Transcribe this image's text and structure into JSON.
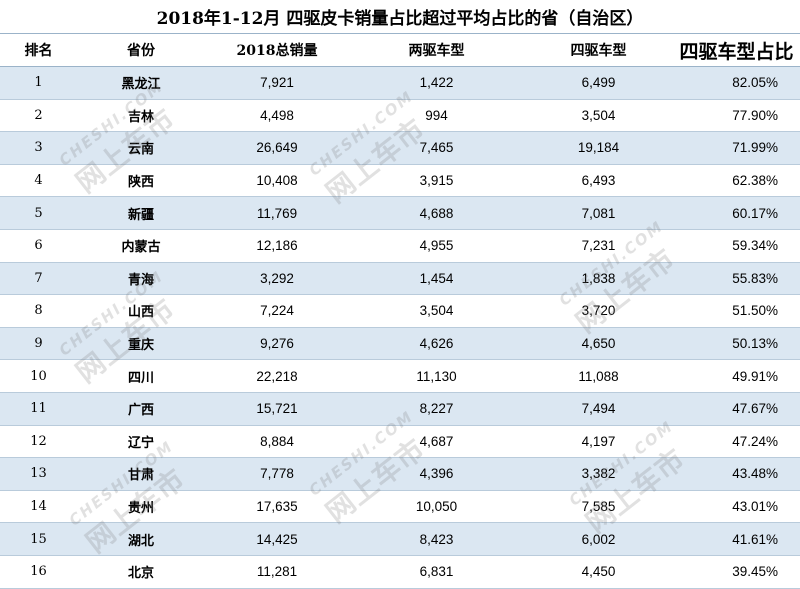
{
  "title": "2018年1-12月  四驱皮卡销量占比超过平均占比的省（自治区）",
  "columns": {
    "rank": "排名",
    "province": "省份",
    "total": "2018总销量",
    "two_wd": "两驱车型",
    "four_wd": "四驱车型",
    "pct": "四驱车型占比"
  },
  "rows": [
    {
      "rank": "1",
      "province": "黑龙江",
      "total": "7,921",
      "two_wd": "1,422",
      "four_wd": "6,499",
      "pct": "82.05%"
    },
    {
      "rank": "2",
      "province": "吉林",
      "total": "4,498",
      "two_wd": "994",
      "four_wd": "3,504",
      "pct": "77.90%"
    },
    {
      "rank": "3",
      "province": "云南",
      "total": "26,649",
      "two_wd": "7,465",
      "four_wd": "19,184",
      "pct": "71.99%"
    },
    {
      "rank": "4",
      "province": "陕西",
      "total": "10,408",
      "two_wd": "3,915",
      "four_wd": "6,493",
      "pct": "62.38%"
    },
    {
      "rank": "5",
      "province": "新疆",
      "total": "11,769",
      "two_wd": "4,688",
      "four_wd": "7,081",
      "pct": "60.17%"
    },
    {
      "rank": "6",
      "province": "内蒙古",
      "total": "12,186",
      "two_wd": "4,955",
      "four_wd": "7,231",
      "pct": "59.34%"
    },
    {
      "rank": "7",
      "province": "青海",
      "total": "3,292",
      "two_wd": "1,454",
      "four_wd": "1,838",
      "pct": "55.83%"
    },
    {
      "rank": "8",
      "province": "山西",
      "total": "7,224",
      "two_wd": "3,504",
      "four_wd": "3,720",
      "pct": "51.50%"
    },
    {
      "rank": "9",
      "province": "重庆",
      "total": "9,276",
      "two_wd": "4,626",
      "four_wd": "4,650",
      "pct": "50.13%"
    },
    {
      "rank": "10",
      "province": "四川",
      "total": "22,218",
      "two_wd": "11,130",
      "four_wd": "11,088",
      "pct": "49.91%"
    },
    {
      "rank": "11",
      "province": "广西",
      "total": "15,721",
      "two_wd": "8,227",
      "four_wd": "7,494",
      "pct": "47.67%"
    },
    {
      "rank": "12",
      "province": "辽宁",
      "total": "8,884",
      "two_wd": "4,687",
      "four_wd": "4,197",
      "pct": "47.24%"
    },
    {
      "rank": "13",
      "province": "甘肃",
      "total": "7,778",
      "two_wd": "4,396",
      "four_wd": "3,382",
      "pct": "43.48%"
    },
    {
      "rank": "14",
      "province": "贵州",
      "total": "17,635",
      "two_wd": "10,050",
      "four_wd": "7,585",
      "pct": "43.01%"
    },
    {
      "rank": "15",
      "province": "湖北",
      "total": "14,425",
      "two_wd": "8,423",
      "four_wd": "6,002",
      "pct": "41.61%"
    },
    {
      "rank": "16",
      "province": "北京",
      "total": "11,281",
      "two_wd": "6,831",
      "four_wd": "4,450",
      "pct": "39.45%"
    }
  ],
  "watermark": {
    "text": "CHESHI.COM",
    "brand": "网上车市"
  }
}
